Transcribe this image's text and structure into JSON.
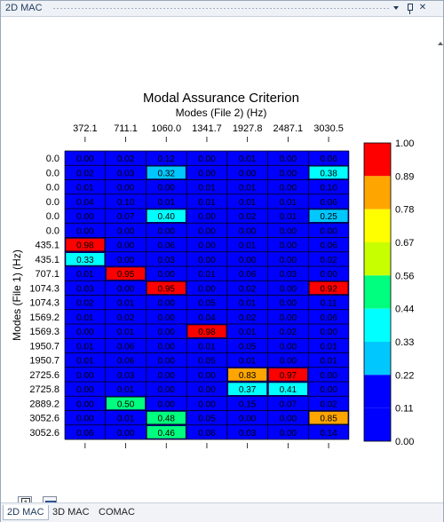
{
  "window": {
    "title": "2D MAC"
  },
  "chart_data": {
    "type": "heatmap",
    "title": "Modal Assurance Criterion",
    "subtitle": "Modes (File 2) (Hz)",
    "ylabel": "Modes (File 1) (Hz)",
    "x_tick_labels": [
      "372.1",
      "711.1",
      "1060.0",
      "1341.7",
      "1927.8",
      "2487.1",
      "3030.5"
    ],
    "y_labels": [
      "0.0",
      "0.0",
      "0.0",
      "0.0",
      "0.0",
      "0.0",
      "435.1",
      "435.1",
      "707.1",
      "1074.3",
      "1074.3",
      "1569.2",
      "1569.3",
      "1950.7",
      "1950.7",
      "2725.6",
      "2725.8",
      "2889.2",
      "3052.6",
      "3052.6"
    ],
    "values": [
      [
        0.0,
        0.02,
        0.12,
        0.0,
        0.01,
        0.0,
        0.06
      ],
      [
        0.02,
        0.03,
        0.32,
        0.0,
        0.0,
        0.0,
        0.38
      ],
      [
        0.01,
        0.0,
        0.0,
        0.01,
        0.01,
        0.0,
        0.1
      ],
      [
        0.04,
        0.1,
        0.01,
        0.01,
        0.01,
        0.01,
        0.06
      ],
      [
        0.0,
        0.07,
        0.4,
        0.0,
        0.02,
        0.01,
        0.25
      ],
      [
        0.0,
        0.0,
        0.0,
        0.0,
        0.0,
        0.0,
        0.0
      ],
      [
        0.98,
        0.0,
        0.06,
        0.0,
        0.01,
        0.0,
        0.06
      ],
      [
        0.33,
        0.0,
        0.03,
        0.0,
        0.0,
        0.0,
        0.02
      ],
      [
        0.01,
        0.95,
        0.0,
        0.01,
        0.06,
        0.03,
        0.0
      ],
      [
        0.03,
        0.0,
        0.95,
        0.0,
        0.02,
        0.0,
        0.92
      ],
      [
        0.02,
        0.01,
        0.0,
        0.05,
        0.01,
        0.0,
        0.11
      ],
      [
        0.01,
        0.02,
        0.0,
        0.04,
        0.02,
        0.0,
        0.06
      ],
      [
        0.0,
        0.01,
        0.0,
        0.98,
        0.01,
        0.02,
        0.0
      ],
      [
        0.01,
        0.06,
        0.0,
        0.01,
        0.05,
        0.0,
        0.01
      ],
      [
        0.01,
        0.06,
        0.0,
        0.05,
        0.01,
        0.0,
        0.01
      ],
      [
        0.0,
        0.03,
        0.0,
        0.0,
        0.83,
        0.97,
        0.0
      ],
      [
        0.0,
        0.01,
        0.0,
        0.0,
        0.37,
        0.41,
        0.0
      ],
      [
        0.0,
        0.5,
        0.0,
        0.0,
        0.15,
        0.07,
        0.02
      ],
      [
        0.0,
        0.01,
        0.48,
        0.05,
        0.0,
        0.0,
        0.85
      ],
      [
        0.06,
        0.0,
        0.46,
        0.06,
        0.03,
        0.0,
        0.14
      ]
    ],
    "colorbar_ticks": [
      "1.00",
      "0.89",
      "0.78",
      "0.67",
      "0.56",
      "0.44",
      "0.33",
      "0.22",
      "0.11",
      "0.00"
    ],
    "colorbar_colors": [
      "#ff0000",
      "#ffa500",
      "#ffff00",
      "#c8ff00",
      "#00ff7f",
      "#00ffff",
      "#00c8ff",
      "#0000ff",
      "#0000ff"
    ]
  },
  "bottom_icons": [
    {
      "name": "single-view-icon",
      "glyph": "1"
    },
    {
      "name": "snapshot-icon"
    }
  ],
  "tabs": [
    {
      "label": "2D MAC",
      "active": true
    },
    {
      "label": "3D MAC",
      "active": false
    },
    {
      "label": "COMAC",
      "active": false
    }
  ],
  "titlebar_icons": [
    "dropdown-icon",
    "pin-icon",
    "close-icon"
  ]
}
